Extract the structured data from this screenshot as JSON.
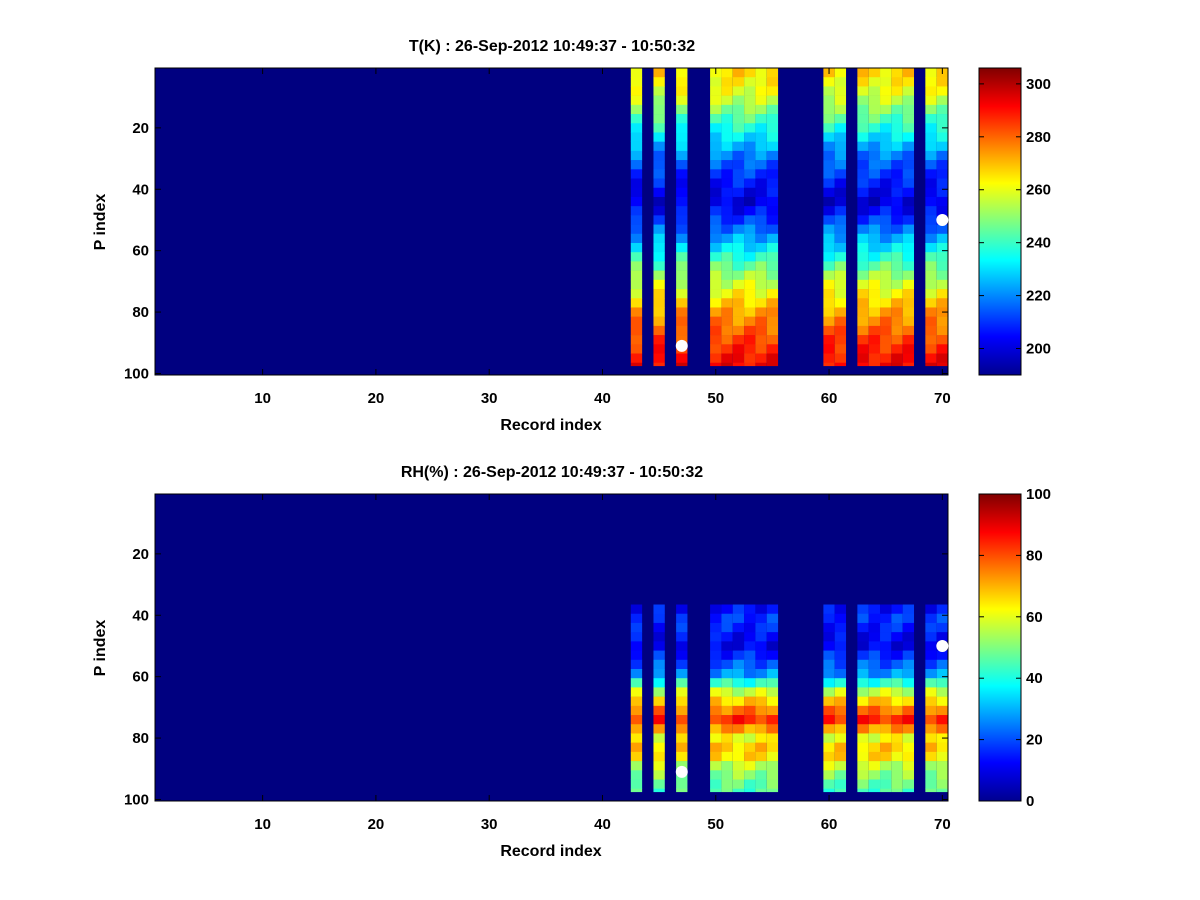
{
  "chart_data": [
    {
      "type": "heatmap",
      "title": "T(K) : 26-Sep-2012 10:49:37 - 10:50:32",
      "xlabel": "Record index",
      "ylabel": "P index",
      "xlim": [
        0.5,
        70.5
      ],
      "ylim": [
        0.5,
        100.5
      ],
      "y_reversed": true,
      "xticks": [
        10,
        20,
        30,
        40,
        50,
        60,
        70
      ],
      "yticks": [
        20,
        40,
        60,
        80,
        100
      ],
      "colorbar": {
        "min": 190,
        "max": 306,
        "ticks": [
          200,
          220,
          240,
          260,
          280,
          300
        ],
        "colormap": "jet"
      },
      "background_value": 190,
      "valid_rows": [
        1,
        97
      ],
      "active_records": [
        43,
        45,
        47,
        50,
        51,
        52,
        53,
        54,
        55,
        60,
        61,
        63,
        64,
        65,
        66,
        67,
        69,
        70
      ],
      "profile_anchors": {
        "p": [
          1,
          10,
          20,
          30,
          40,
          45,
          50,
          60,
          70,
          80,
          90,
          97
        ],
        "value": [
          268,
          258,
          238,
          218,
          205,
          200,
          210,
          232,
          255,
          272,
          285,
          292
        ]
      },
      "markers": [
        {
          "x": 47,
          "y": 91
        },
        {
          "x": 70,
          "y": 50
        }
      ]
    },
    {
      "type": "heatmap",
      "title": "RH(%) : 26-Sep-2012 10:49:37 - 10:50:32",
      "xlabel": "Record index",
      "ylabel": "P index",
      "xlim": [
        0.5,
        70.5
      ],
      "ylim": [
        0.5,
        100.5
      ],
      "y_reversed": true,
      "xticks": [
        10,
        20,
        30,
        40,
        50,
        60,
        70
      ],
      "yticks": [
        20,
        40,
        60,
        80,
        100
      ],
      "colorbar": {
        "min": 0,
        "max": 100,
        "ticks": [
          0,
          20,
          40,
          60,
          80,
          100
        ],
        "colormap": "jet"
      },
      "background_value": 0,
      "valid_rows": [
        37,
        97
      ],
      "active_records": [
        43,
        45,
        47,
        50,
        51,
        52,
        53,
        54,
        55,
        60,
        61,
        63,
        64,
        65,
        66,
        67,
        69,
        70
      ],
      "profile_anchors": {
        "p": [
          37,
          42,
          50,
          60,
          65,
          70,
          75,
          80,
          85,
          90,
          97
        ],
        "value": [
          12,
          18,
          10,
          28,
          55,
          72,
          85,
          60,
          70,
          55,
          45
        ]
      },
      "markers": [
        {
          "x": 47,
          "y": 91
        },
        {
          "x": 70,
          "y": 50
        }
      ]
    }
  ]
}
